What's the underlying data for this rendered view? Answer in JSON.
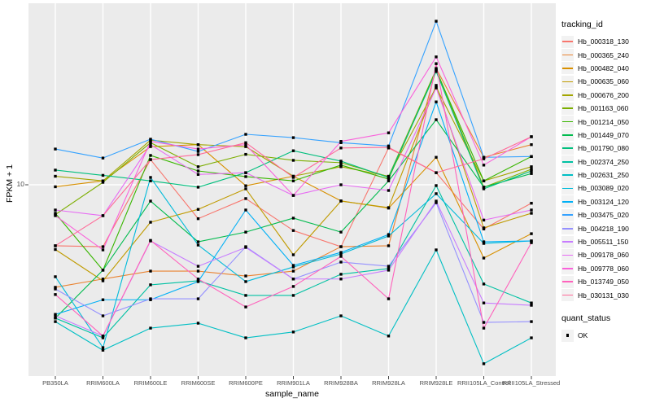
{
  "chart": {
    "y_axis_title": "FPKM + 1",
    "x_axis_title": "sample_name",
    "y_tick_label": "10",
    "legend_title": "tracking_id",
    "legend2_title": "quant_status",
    "legend2_items": [
      {
        "label": "OK",
        "key_icon": "filled-black-square"
      }
    ],
    "panel_bg_color": "#EBEBEB",
    "gridline_color": "#FFFFFF",
    "point_color": "#000000"
  },
  "chart_data": {
    "type": "line",
    "title": "",
    "xlabel": "sample_name",
    "ylabel": "FPKM + 1",
    "y_scale": "log10",
    "y_ticks": [
      10
    ],
    "ylim": [
      1.4,
      62
    ],
    "grid": true,
    "legend_position": "right",
    "point_shape": "filled-black-square",
    "categories": [
      "PB350LA",
      "RRIM600LA",
      "RRIM600LE",
      "RRIM600SE",
      "RRIM600PE",
      "RRIM901LA",
      "RRIM928BA",
      "RRIM928LA",
      "RRIM928LE",
      "RRII105LA_Control",
      "RRII105LA_Stressed"
    ],
    "series": [
      {
        "name": "Hb_000318_130",
        "color": "#F8766D",
        "values": [
          5.4,
          5.35,
          12.9,
          7.1,
          8.7,
          6.3,
          5.35,
          14.5,
          11.3,
          6.4,
          8.3
        ]
      },
      {
        "name": "Hb_000365_240",
        "color": "#EA8331",
        "values": [
          3.55,
          3.86,
          4.18,
          4.18,
          3.98,
          4.18,
          5.35,
          5.4,
          32.4,
          13.2,
          15.0
        ]
      },
      {
        "name": "Hb_000482_040",
        "color": "#D89000",
        "values": [
          9.8,
          10.4,
          14.7,
          15.0,
          9.9,
          10.9,
          8.5,
          7.9,
          13.2,
          4.77,
          6.1
        ]
      },
      {
        "name": "Hb_000635_060",
        "color": "#C09B00",
        "values": [
          5.2,
          3.79,
          6.85,
          7.8,
          9.6,
          4.93,
          8.48,
          7.94,
          27.3,
          6.47,
          7.5
        ]
      },
      {
        "name": "Hb_000676_200",
        "color": "#A3A500",
        "values": [
          10.9,
          10.4,
          15.7,
          15.0,
          14.7,
          10.9,
          12.0,
          10.9,
          26.8,
          10.4,
          12.0
        ]
      },
      {
        "name": "Hb_001163_060",
        "color": "#7CAE00",
        "values": [
          7.4,
          10.25,
          15.3,
          12.0,
          13.6,
          12.8,
          12.5,
          10.86,
          32.1,
          9.76,
          11.7
        ]
      },
      {
        "name": "Hb_001214_050",
        "color": "#39B600",
        "values": [
          7.5,
          4.22,
          13.45,
          11.5,
          10.86,
          10.4,
          12.2,
          10.6,
          31.9,
          10.4,
          13.3
        ]
      },
      {
        "name": "Hb_001449_070",
        "color": "#00BB4E",
        "values": [
          2.6,
          4.22,
          8.48,
          5.62,
          6.2,
          7.14,
          6.2,
          10.4,
          19.3,
          9.76,
          11.2
        ]
      },
      {
        "name": "Hb_001790_080",
        "color": "#00BF7D",
        "values": [
          11.6,
          11.0,
          10.4,
          9.76,
          11.3,
          14.1,
          12.7,
          10.77,
          31.4,
          9.6,
          11.5
        ]
      },
      {
        "name": "Hb_002374_250",
        "color": "#00C1A3",
        "values": [
          2.6,
          2.13,
          3.64,
          3.79,
          3.27,
          3.27,
          4.05,
          4.29,
          9.92,
          3.67,
          3.03
        ]
      },
      {
        "name": "Hb_002631_250",
        "color": "#00BFC4",
        "values": [
          2.51,
          1.88,
          2.35,
          2.47,
          2.13,
          2.26,
          2.66,
          2.17,
          5.18,
          1.64,
          2.13
        ]
      },
      {
        "name": "Hb_003089_020",
        "color": "#00BBDA",
        "values": [
          3.95,
          1.93,
          10.77,
          5.44,
          3.76,
          4.36,
          4.97,
          5.96,
          9.14,
          5.53,
          5.67
        ]
      },
      {
        "name": "Hb_003124_120",
        "color": "#00B0F6",
        "values": [
          2.7,
          3.13,
          3.13,
          3.76,
          7.75,
          4.43,
          5.05,
          6.05,
          23.1,
          5.62,
          5.67
        ]
      },
      {
        "name": "Hb_003475_020",
        "color": "#35A2FF",
        "values": [
          14.35,
          13.1,
          15.85,
          14.0,
          16.65,
          16.1,
          15.3,
          14.8,
          52.2,
          13.2,
          13.3
        ]
      },
      {
        "name": "Hb_004218_190",
        "color": "#9590FF",
        "values": [
          3.49,
          2.66,
          3.16,
          3.16,
          5.35,
          3.86,
          4.58,
          4.39,
          8.34,
          2.49,
          2.51
        ]
      },
      {
        "name": "Hb_005511_150",
        "color": "#C77CFF",
        "values": [
          2.66,
          2.17,
          5.67,
          4.39,
          5.31,
          3.86,
          3.86,
          4.22,
          8.48,
          3.03,
          2.96
        ]
      },
      {
        "name": "Hb_009178_060",
        "color": "#E76BF3",
        "values": [
          7.75,
          7.32,
          15.0,
          11.1,
          11.3,
          8.98,
          10.0,
          9.44,
          26.6,
          7.0,
          7.75
        ]
      },
      {
        "name": "Hb_009778_060",
        "color": "#FA62DB",
        "values": [
          7.32,
          5.18,
          15.5,
          14.35,
          15.0,
          8.98,
          15.5,
          16.9,
          36.4,
          12.2,
          16.25
        ]
      },
      {
        "name": "Hb_013749_050",
        "color": "#FF62BC",
        "values": [
          3.3,
          2.17,
          5.7,
          3.86,
          2.91,
          3.58,
          4.85,
          3.16,
          34.0,
          2.35,
          5.57
        ]
      },
      {
        "name": "Hb_030131_030",
        "color": "#FF6A98",
        "values": [
          5.4,
          7.32,
          12.9,
          13.56,
          15.3,
          10.77,
          14.5,
          14.6,
          11.3,
          13.0,
          16.25
        ]
      }
    ]
  }
}
